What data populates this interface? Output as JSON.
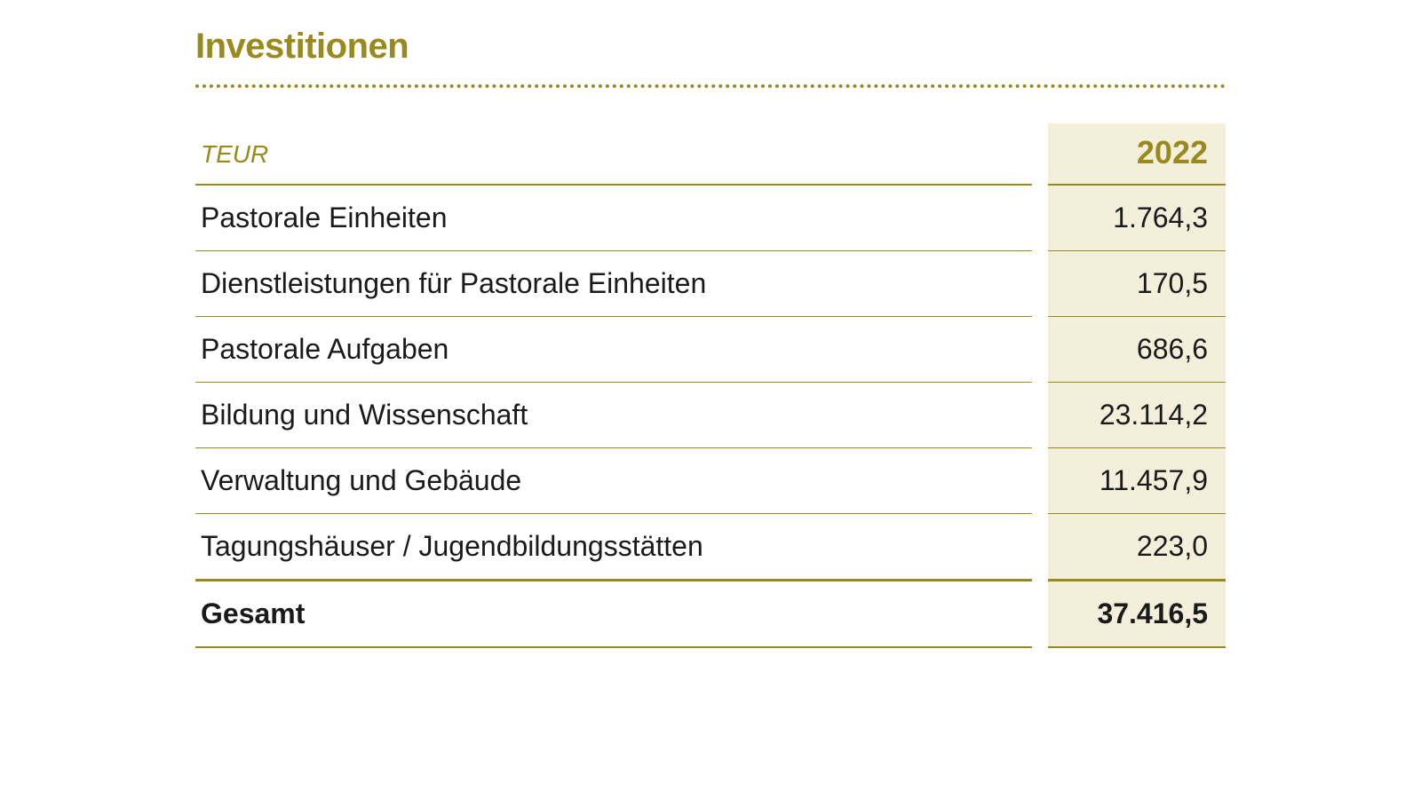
{
  "title": "Investitionen",
  "table": {
    "unit_label": "TEUR",
    "year": "2022",
    "rows": [
      {
        "label": "Pastorale Einheiten",
        "value": "1.764,3"
      },
      {
        "label": "Dienstleistungen für Pastorale Einheiten",
        "value": "170,5"
      },
      {
        "label": "Pastorale Aufgaben",
        "value": "686,6"
      },
      {
        "label": "Bildung und Wissenschaft",
        "value": "23.114,2"
      },
      {
        "label": "Verwaltung und Gebäude",
        "value": "11.457,9"
      },
      {
        "label": "Tagungshäuser / Jugendbildungsstätten",
        "value": "223,0"
      }
    ],
    "total": {
      "label": "Gesamt",
      "value": "37.416,5"
    }
  },
  "colors": {
    "accent": "#9a8a1e",
    "value_bg": "#f3efda",
    "text": "#1a1a1a",
    "background": "#ffffff"
  }
}
